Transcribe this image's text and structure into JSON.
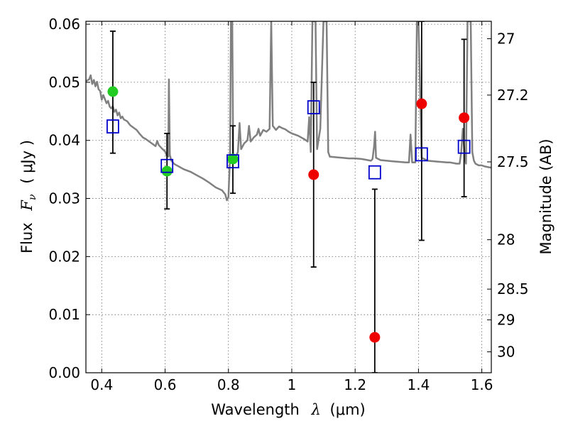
{
  "chart_data": {
    "type": "scatter",
    "xlim": [
      0.35,
      1.63
    ],
    "ylim": [
      0.0,
      0.0605
    ],
    "grid": true,
    "x_ticks": [
      0.4,
      0.6,
      0.8,
      1.0,
      1.2,
      1.4,
      1.6
    ],
    "x_tick_labels": [
      "0.4",
      "0.6",
      "0.8",
      "1",
      "1.2",
      "1.4",
      "1.6"
    ],
    "y_ticks": [
      0.0,
      0.01,
      0.02,
      0.03,
      0.04,
      0.05,
      0.06
    ],
    "y_tick_labels": [
      "0.00",
      "0.01",
      "0.02",
      "0.03",
      "0.04",
      "0.05",
      "0.06"
    ],
    "xlabel": {
      "prefix": "Wavelength",
      "symbol": "λ",
      "unit": "(μm)"
    },
    "ylabel": {
      "prefix": "Flux",
      "symbol": "F",
      "subscript": "ν",
      "unit": "( μJy )"
    },
    "ylabel_right": "Magnitude (AB)",
    "mag_ticks": [
      {
        "label": "27",
        "flux": 0.0575
      },
      {
        "label": "27.2",
        "flux": 0.0478
      },
      {
        "label": "27.5",
        "flux": 0.0363
      },
      {
        "label": "28",
        "flux": 0.0229
      },
      {
        "label": "28.5",
        "flux": 0.0144
      },
      {
        "label": "29",
        "flux": 0.0091
      },
      {
        "label": "30",
        "flux": 0.0036
      }
    ],
    "series": [
      {
        "marker": "circle",
        "color": "#22cc22",
        "points": [
          {
            "x": 0.435,
            "y": 0.0484
          },
          {
            "x": 0.606,
            "y": 0.0347
          },
          {
            "x": 0.814,
            "y": 0.0368
          }
        ]
      },
      {
        "marker": "circle",
        "color": "#ee0000",
        "points": [
          {
            "x": 1.069,
            "y": 0.0341
          },
          {
            "x": 1.262,
            "y": 0.0061
          },
          {
            "x": 1.41,
            "y": 0.0463
          },
          {
            "x": 1.544,
            "y": 0.0439
          }
        ]
      },
      {
        "marker": "square-open",
        "color": "#0000cc",
        "points": [
          {
            "x": 0.435,
            "y": 0.0424
          },
          {
            "x": 0.606,
            "y": 0.0356
          },
          {
            "x": 0.814,
            "y": 0.0364
          },
          {
            "x": 1.069,
            "y": 0.0457
          },
          {
            "x": 1.262,
            "y": 0.0345
          },
          {
            "x": 1.41,
            "y": 0.0376
          },
          {
            "x": 1.544,
            "y": 0.0389
          }
        ]
      }
    ],
    "error_bars": [
      {
        "x": 0.435,
        "low": 0.0378,
        "high": 0.0588
      },
      {
        "x": 0.606,
        "low": 0.0282,
        "high": 0.0412
      },
      {
        "x": 0.814,
        "low": 0.0309,
        "high": 0.0425
      },
      {
        "x": 1.069,
        "low": 0.0182,
        "high": 0.05
      },
      {
        "x": 1.262,
        "low": 0.0,
        "high": 0.0316
      },
      {
        "x": 1.41,
        "low": 0.0228,
        "high": 0.0605
      },
      {
        "x": 1.544,
        "low": 0.0303,
        "high": 0.0574
      }
    ],
    "sed_line": {
      "color": "#808080",
      "points": [
        [
          0.35,
          0.0502
        ],
        [
          0.36,
          0.0505
        ],
        [
          0.365,
          0.0512
        ],
        [
          0.37,
          0.0497
        ],
        [
          0.375,
          0.0504
        ],
        [
          0.38,
          0.0493
        ],
        [
          0.385,
          0.0501
        ],
        [
          0.39,
          0.0488
        ],
        [
          0.395,
          0.0485
        ],
        [
          0.4,
          0.047
        ],
        [
          0.405,
          0.0478
        ],
        [
          0.41,
          0.0471
        ],
        [
          0.415,
          0.0464
        ],
        [
          0.42,
          0.0468
        ],
        [
          0.425,
          0.0458
        ],
        [
          0.43,
          0.0455
        ],
        [
          0.435,
          0.0459
        ],
        [
          0.44,
          0.0449
        ],
        [
          0.445,
          0.0453
        ],
        [
          0.45,
          0.0443
        ],
        [
          0.455,
          0.0448
        ],
        [
          0.46,
          0.0438
        ],
        [
          0.465,
          0.0441
        ],
        [
          0.47,
          0.0436
        ],
        [
          0.48,
          0.0433
        ],
        [
          0.49,
          0.0426
        ],
        [
          0.5,
          0.0422
        ],
        [
          0.51,
          0.0418
        ],
        [
          0.52,
          0.0411
        ],
        [
          0.53,
          0.0405
        ],
        [
          0.54,
          0.0402
        ],
        [
          0.55,
          0.0398
        ],
        [
          0.56,
          0.0394
        ],
        [
          0.57,
          0.039
        ],
        [
          0.575,
          0.0399
        ],
        [
          0.58,
          0.0392
        ],
        [
          0.59,
          0.0386
        ],
        [
          0.6,
          0.0381
        ],
        [
          0.605,
          0.0374
        ],
        [
          0.61,
          0.0372
        ],
        [
          0.612,
          0.0505
        ],
        [
          0.615,
          0.0375
        ],
        [
          0.62,
          0.0365
        ],
        [
          0.63,
          0.0359
        ],
        [
          0.64,
          0.0356
        ],
        [
          0.65,
          0.0353
        ],
        [
          0.66,
          0.035
        ],
        [
          0.68,
          0.0346
        ],
        [
          0.7,
          0.034
        ],
        [
          0.72,
          0.0334
        ],
        [
          0.74,
          0.0327
        ],
        [
          0.76,
          0.0319
        ],
        [
          0.78,
          0.0314
        ],
        [
          0.79,
          0.0307
        ],
        [
          0.795,
          0.0297
        ],
        [
          0.8,
          0.0302
        ],
        [
          0.805,
          0.0372
        ],
        [
          0.808,
          0.0605
        ],
        [
          0.812,
          0.0605
        ],
        [
          0.815,
          0.0375
        ],
        [
          0.82,
          0.0368
        ],
        [
          0.83,
          0.038
        ],
        [
          0.835,
          0.043
        ],
        [
          0.84,
          0.0385
        ],
        [
          0.85,
          0.0395
        ],
        [
          0.86,
          0.04
        ],
        [
          0.865,
          0.0425
        ],
        [
          0.87,
          0.0398
        ],
        [
          0.88,
          0.0405
        ],
        [
          0.89,
          0.041
        ],
        [
          0.895,
          0.042
        ],
        [
          0.9,
          0.0408
        ],
        [
          0.91,
          0.0418
        ],
        [
          0.92,
          0.0415
        ],
        [
          0.93,
          0.042
        ],
        [
          0.935,
          0.0605
        ],
        [
          0.94,
          0.0425
        ],
        [
          0.95,
          0.0418
        ],
        [
          0.96,
          0.0424
        ],
        [
          0.97,
          0.0421
        ],
        [
          0.98,
          0.0419
        ],
        [
          0.99,
          0.0415
        ],
        [
          1.0,
          0.0412
        ],
        [
          1.02,
          0.0408
        ],
        [
          1.04,
          0.0402
        ],
        [
          1.05,
          0.0398
        ],
        [
          1.055,
          0.044
        ],
        [
          1.06,
          0.038
        ],
        [
          1.065,
          0.0605
        ],
        [
          1.075,
          0.0605
        ],
        [
          1.08,
          0.0385
        ],
        [
          1.09,
          0.042
        ],
        [
          1.1,
          0.0605
        ],
        [
          1.11,
          0.0605
        ],
        [
          1.115,
          0.038
        ],
        [
          1.12,
          0.0372
        ],
        [
          1.14,
          0.0371
        ],
        [
          1.16,
          0.037
        ],
        [
          1.18,
          0.0369
        ],
        [
          1.2,
          0.0369
        ],
        [
          1.22,
          0.0368
        ],
        [
          1.24,
          0.0366
        ],
        [
          1.25,
          0.0365
        ],
        [
          1.255,
          0.0368
        ],
        [
          1.26,
          0.039
        ],
        [
          1.263,
          0.0415
        ],
        [
          1.266,
          0.037
        ],
        [
          1.28,
          0.0366
        ],
        [
          1.3,
          0.0365
        ],
        [
          1.32,
          0.0364
        ],
        [
          1.34,
          0.0363
        ],
        [
          1.36,
          0.0362
        ],
        [
          1.37,
          0.0362
        ],
        [
          1.375,
          0.041
        ],
        [
          1.38,
          0.0362
        ],
        [
          1.39,
          0.0362
        ],
        [
          1.395,
          0.0605
        ],
        [
          1.4,
          0.0605
        ],
        [
          1.41,
          0.037
        ],
        [
          1.43,
          0.0365
        ],
        [
          1.45,
          0.0364
        ],
        [
          1.47,
          0.0363
        ],
        [
          1.49,
          0.0362
        ],
        [
          1.5,
          0.0362
        ],
        [
          1.51,
          0.0361
        ],
        [
          1.52,
          0.036
        ],
        [
          1.53,
          0.036
        ],
        [
          1.535,
          0.038
        ],
        [
          1.54,
          0.042
        ],
        [
          1.545,
          0.038
        ],
        [
          1.55,
          0.036
        ],
        [
          1.555,
          0.0605
        ],
        [
          1.565,
          0.0605
        ],
        [
          1.57,
          0.038
        ],
        [
          1.575,
          0.0365
        ],
        [
          1.58,
          0.036
        ],
        [
          1.59,
          0.0357
        ],
        [
          1.6,
          0.0357
        ],
        [
          1.61,
          0.0355
        ],
        [
          1.62,
          0.0354
        ],
        [
          1.63,
          0.0353
        ]
      ]
    }
  }
}
